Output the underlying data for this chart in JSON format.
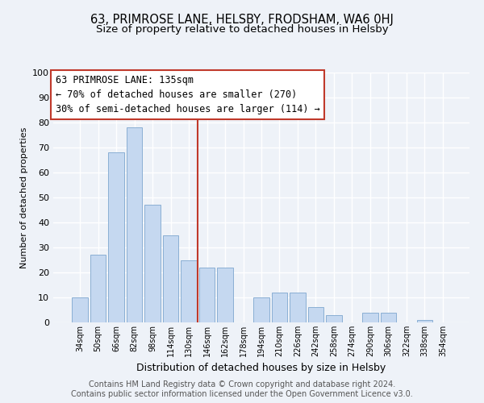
{
  "title": "63, PRIMROSE LANE, HELSBY, FRODSHAM, WA6 0HJ",
  "subtitle": "Size of property relative to detached houses in Helsby",
  "xlabel": "Distribution of detached houses by size in Helsby",
  "ylabel": "Number of detached properties",
  "bar_color": "#c5d8f0",
  "bar_edgecolor": "#8aafd4",
  "categories": [
    "34sqm",
    "50sqm",
    "66sqm",
    "82sqm",
    "98sqm",
    "114sqm",
    "130sqm",
    "146sqm",
    "162sqm",
    "178sqm",
    "194sqm",
    "210sqm",
    "226sqm",
    "242sqm",
    "258sqm",
    "274sqm",
    "290sqm",
    "306sqm",
    "322sqm",
    "338sqm",
    "354sqm"
  ],
  "values": [
    10,
    27,
    68,
    78,
    47,
    35,
    25,
    22,
    22,
    0,
    10,
    12,
    12,
    6,
    3,
    0,
    4,
    4,
    0,
    1,
    0
  ],
  "vline_color": "#c0392b",
  "vline_pos": 6.5,
  "ylim": [
    0,
    100
  ],
  "yticks": [
    0,
    10,
    20,
    30,
    40,
    50,
    60,
    70,
    80,
    90,
    100
  ],
  "annot_line1": "63 PRIMROSE LANE: 135sqm",
  "annot_line2": "← 70% of detached houses are smaller (270)",
  "annot_line3": "30% of semi-detached houses are larger (114) →",
  "footer1": "Contains HM Land Registry data © Crown copyright and database right 2024.",
  "footer2": "Contains public sector information licensed under the Open Government Licence v3.0.",
  "bg_color": "#eef2f8",
  "grid_color": "#ffffff",
  "title_fontsize": 10.5,
  "subtitle_fontsize": 9.5,
  "annot_fontsize": 8.5,
  "ylabel_fontsize": 8,
  "xlabel_fontsize": 9,
  "footer_fontsize": 7,
  "ytick_fontsize": 8,
  "xtick_fontsize": 7
}
